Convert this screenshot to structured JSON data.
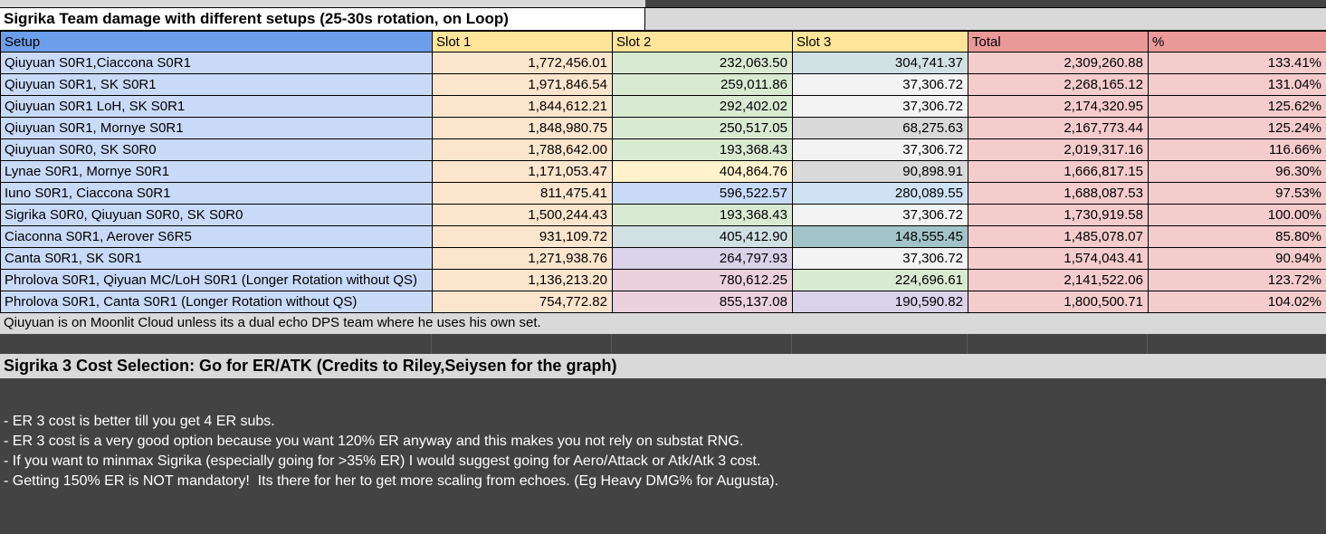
{
  "sheet": {
    "title": "Sigrika Team damage with different setups (25-30s rotation, on Loop)",
    "note": "Qiuyuan is on Moonlit Cloud unless its a dual echo DPS team where he uses his own set."
  },
  "table": {
    "columns": [
      "Setup",
      "Slot 1",
      "Slot 2",
      "Slot 3",
      "Total",
      "%"
    ],
    "header_colors": [
      "#6d9eeb",
      "#ffe599",
      "#ffe599",
      "#ffe599",
      "#ea9999",
      "#ea9999"
    ],
    "body_colors": {
      "setup": "#c9daf8",
      "slot1": "#fce5cd",
      "total": "#f4cccc",
      "pct": "#f4cccc"
    },
    "rows": [
      {
        "setup": "Qiuyuan S0R1,Ciaccona S0R1",
        "slot1": "1,772,456.01",
        "slot2": "232,063.50",
        "slot3": "304,741.37",
        "total": "2,309,260.88",
        "pct": "133.41%",
        "slot2_color": "#d9ead3",
        "slot3_color": "#d0e0e3"
      },
      {
        "setup": "Qiuyuan S0R1, SK S0R1",
        "slot1": "1,971,846.54",
        "slot2": "259,011.86",
        "slot3": "37,306.72",
        "total": "2,268,165.12",
        "pct": "131.04%",
        "slot2_color": "#d9ead3",
        "slot3_color": "#f3f3f3"
      },
      {
        "setup": "Qiuyuan S0R1 LoH, SK S0R1",
        "slot1": "1,844,612.21",
        "slot2": "292,402.02",
        "slot3": "37,306.72",
        "total": "2,174,320.95",
        "pct": "125.62%",
        "slot2_color": "#d9ead3",
        "slot3_color": "#f3f3f3"
      },
      {
        "setup": "Qiuyuan S0R1, Mornye S0R1",
        "slot1": "1,848,980.75",
        "slot2": "250,517.05",
        "slot3": "68,275.63",
        "total": "2,167,773.44",
        "pct": "125.24%",
        "slot2_color": "#d9ead3",
        "slot3_color": "#d9d9d9"
      },
      {
        "setup": "Qiuyuan S0R0, SK S0R0",
        "slot1": "1,788,642.00",
        "slot2": "193,368.43",
        "slot3": "37,306.72",
        "total": "2,019,317.16",
        "pct": "116.66%",
        "slot2_color": "#d9ead3",
        "slot3_color": "#f3f3f3"
      },
      {
        "setup": "Lynae S0R1, Mornye S0R1",
        "slot1": "1,171,053.47",
        "slot2": "404,864.76",
        "slot3": "90,898.91",
        "total": "1,666,817.15",
        "pct": "96.30%",
        "slot2_color": "#fff2cc",
        "slot3_color": "#d9d9d9"
      },
      {
        "setup": "Iuno S0R1, Ciaccona S0R1",
        "slot1": "811,475.41",
        "slot2": "596,522.57",
        "slot3": "280,089.55",
        "total": "1,688,087.53",
        "pct": "97.53%",
        "slot2_color": "#c9daf8",
        "slot3_color": "#cfe2f3"
      },
      {
        "setup": "Sigrika S0R0, Qiuyuan S0R0, SK S0R0",
        "slot1": "1,500,244.43",
        "slot2": "193,368.43",
        "slot3": "37,306.72",
        "total": "1,730,919.58",
        "pct": "100.00%",
        "slot2_color": "#d9ead3",
        "slot3_color": "#f3f3f3"
      },
      {
        "setup": "Ciaconna S0R1, Aerover S6R5",
        "slot1": "931,109.72",
        "slot2": "405,412.90",
        "slot3": "148,555.45",
        "total": "1,485,078.07",
        "pct": "85.80%",
        "slot2_color": "#d0e0e3",
        "slot3_color": "#a2c4c9"
      },
      {
        "setup": "Canta S0R1, SK S0R1",
        "slot1": "1,271,938.76",
        "slot2": "264,797.93",
        "slot3": "37,306.72",
        "total": "1,574,043.41",
        "pct": "90.94%",
        "slot2_color": "#d9d2e9",
        "slot3_color": "#f3f3f3"
      },
      {
        "setup": "Phrolova S0R1, Qiyuan MC/LoH S0R1 (Longer Rotation without QS)",
        "slot1": "1,136,213.20",
        "slot2": "780,612.25",
        "slot3": "224,696.61",
        "total": "2,141,522.06",
        "pct": "123.72%",
        "slot2_color": "#ead1dc",
        "slot3_color": "#d9ead3"
      },
      {
        "setup": "Phrolova S0R1, Canta S0R1 (Longer Rotation without QS)",
        "slot1": "754,772.82",
        "slot2": "855,137.08",
        "slot3": "190,590.82",
        "total": "1,800,500.71",
        "pct": "104.02%",
        "slot2_color": "#ead1dc",
        "slot3_color": "#d9d2e9"
      }
    ]
  },
  "section2": {
    "title": "Sigrika 3 Cost Selection: Go for ER/ATK (Credits to Riley,Seiysen for the graph)",
    "bullets": [
      "- ER 3 cost is better till you get 4 ER subs.",
      "- ER 3 cost is a very good option because you want 120% ER anyway and this makes you not rely on substat RNG.",
      "- If you want to minmax Sigrika (especially going for >35% ER) I would suggest going for Aero/Attack or Atk/Atk 3 cost.",
      "- Getting 150% ER is NOT mandatory!  Its there for her to get more scaling from echoes. (Eg Heavy DMG% for Augusta)."
    ]
  },
  "colors": {
    "page_background": "#434343",
    "band_gray": "#d9d9d9",
    "title_background": "#ffffff",
    "grid_border": "#000000"
  }
}
